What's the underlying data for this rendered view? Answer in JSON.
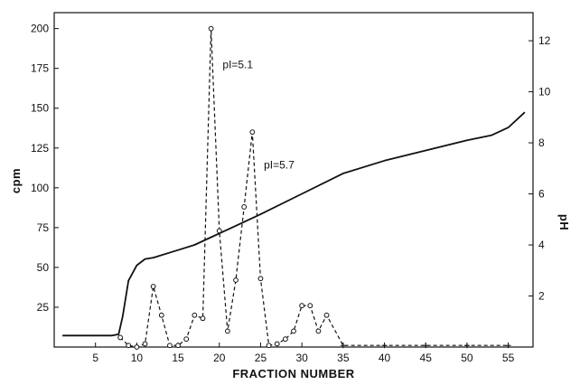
{
  "chart_data": {
    "type": "line",
    "title": "",
    "xlabel": "FRACTION NUMBER",
    "ylabel": "cpm",
    "y2label": "pH",
    "xlim": [
      0,
      58
    ],
    "ylim": [
      0,
      210
    ],
    "y2lim": [
      0,
      13.1
    ],
    "x_ticks": [
      5,
      10,
      15,
      20,
      25,
      30,
      35,
      40,
      45,
      50,
      55
    ],
    "x_tick_labels": [
      "5",
      "10",
      "15",
      "20",
      "25",
      "30",
      "35",
      "40",
      "45",
      "50",
      "55"
    ],
    "y_ticks": [
      25,
      50,
      75,
      100,
      125,
      150,
      175,
      200
    ],
    "y_tick_labels": [
      "25",
      "50",
      "75",
      "100",
      "125",
      "150",
      "175",
      "200"
    ],
    "y2_ticks": [
      2,
      4,
      6,
      8,
      10,
      12
    ],
    "y2_tick_labels": [
      "2",
      "4",
      "6",
      "8",
      "10",
      "12"
    ],
    "grid": false,
    "legend": "none",
    "series": [
      {
        "axis": "left",
        "style": "dashed-circle-markers",
        "x": [
          8,
          9,
          10,
          11,
          12,
          13,
          14,
          15,
          16,
          17,
          18,
          19,
          20,
          21,
          22,
          23,
          24,
          25,
          26,
          27,
          28,
          29,
          30,
          31,
          32,
          33,
          35,
          40,
          45,
          50,
          55
        ],
        "y": [
          6,
          1,
          0,
          2,
          38,
          20,
          1,
          1,
          5,
          20,
          18,
          200,
          73,
          10,
          42,
          88,
          135,
          43,
          1,
          2,
          5,
          10,
          26,
          26,
          10,
          20,
          1,
          1,
          1,
          1,
          1
        ]
      },
      {
        "axis": "right",
        "style": "solid",
        "x": [
          1,
          5,
          7,
          7.8,
          8.3,
          9,
          10,
          11,
          12,
          15,
          17,
          19,
          21,
          25,
          30,
          35,
          40,
          45,
          50,
          53,
          55,
          57
        ],
        "y": [
          0.45,
          0.45,
          0.45,
          0.5,
          1.2,
          2.6,
          3.2,
          3.45,
          3.5,
          3.8,
          4.0,
          4.3,
          4.6,
          5.2,
          6.0,
          6.8,
          7.3,
          7.7,
          8.1,
          8.3,
          8.6,
          9.2
        ]
      }
    ],
    "annotations": [
      {
        "text": "pI=5.1",
        "x": 20.4,
        "y": 175
      },
      {
        "text": "pI=5.7",
        "x": 25.4,
        "y": 112
      }
    ]
  }
}
